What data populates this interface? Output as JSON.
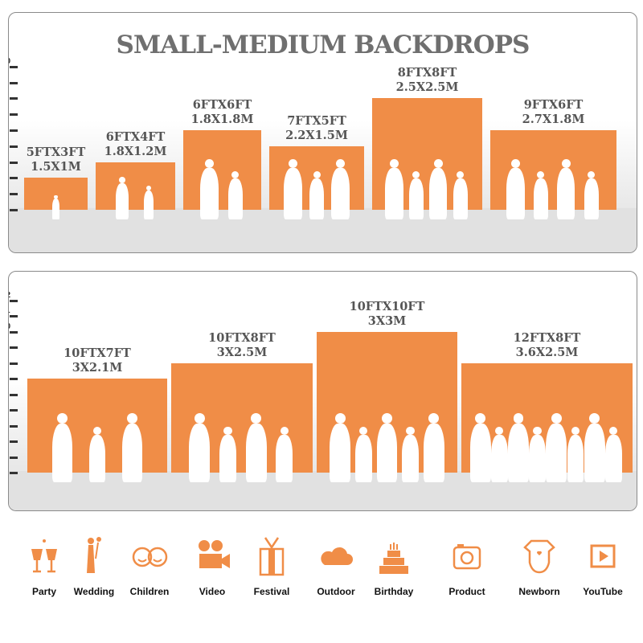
{
  "accent_color": "#f08d47",
  "panels": [
    {
      "title": "SMALL-MEDIUM BACKDROPS",
      "scale_max": 10,
      "backdrops": [
        {
          "size_ft": "5FTX3FT",
          "size_m": "1.5X1M",
          "height_ft": 3,
          "people": 1
        },
        {
          "size_ft": "6FTX4FT",
          "size_m": "1.8X1.2M",
          "height_ft": 4,
          "people": 2
        },
        {
          "size_ft": "6FTX6FT",
          "size_m": "1.8X1.8M",
          "height_ft": 6,
          "people": 2
        },
        {
          "size_ft": "7FTX5FT",
          "size_m": "2.2X1.5M",
          "height_ft": 5,
          "people": 3
        },
        {
          "size_ft": "8FTX8FT",
          "size_m": "2.5X2.5M",
          "height_ft": 8,
          "people": 4
        },
        {
          "size_ft": "9FTX6FT",
          "size_m": "2.7X1.8M",
          "height_ft": 6,
          "people": 4
        }
      ]
    },
    {
      "title": "",
      "scale_max": 12,
      "backdrops": [
        {
          "size_ft": "10FTX7FT",
          "size_m": "3X2.1M",
          "height_ft": 7,
          "people": 3
        },
        {
          "size_ft": "10FTX8FT",
          "size_m": "3X2.5M",
          "height_ft": 8,
          "people": 4
        },
        {
          "size_ft": "10FTX10FT",
          "size_m": "3X3M",
          "height_ft": 10,
          "people": 5
        },
        {
          "size_ft": "12FTX8FT",
          "size_m": "3.6X2.5M",
          "height_ft": 8,
          "people": 8
        }
      ]
    }
  ],
  "uses": [
    {
      "label": "Party",
      "icon": "champagne-glasses-icon"
    },
    {
      "label": "Wedding",
      "icon": "wedding-couple-icon"
    },
    {
      "label": "Children",
      "icon": "children-faces-icon"
    },
    {
      "label": "Video",
      "icon": "film-camera-icon"
    },
    {
      "label": "Festival",
      "icon": "gift-box-icon"
    },
    {
      "label": "Outdoor",
      "icon": "cloud-icon"
    },
    {
      "label": "Birthday",
      "icon": "birthday-cake-icon"
    },
    {
      "label": "Product",
      "icon": "camera-icon"
    },
    {
      "label": "Newborn",
      "icon": "baby-onesie-icon"
    },
    {
      "label": "YouTube",
      "icon": "play-button-icon"
    }
  ]
}
